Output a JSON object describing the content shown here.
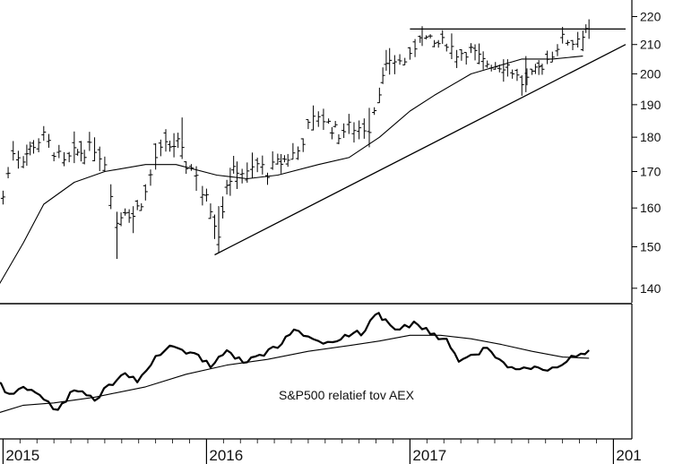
{
  "chart_data": [
    {
      "type": "line",
      "title": "",
      "ylim": [
        131,
        232
      ],
      "yticks": [
        140,
        150,
        160,
        170,
        180,
        190,
        200,
        210,
        220
      ],
      "x_tick_labels": [
        "2015",
        "2016",
        "2017",
        "201"
      ],
      "series": [
        {
          "style": "ohlc-bars",
          "points": [
            {
              "x": 2015.0,
              "y": 163
            },
            {
              "x": 2015.05,
              "y": 176
            },
            {
              "x": 2015.1,
              "y": 174
            },
            {
              "x": 2015.15,
              "y": 178
            },
            {
              "x": 2015.2,
              "y": 180
            },
            {
              "x": 2015.25,
              "y": 176
            },
            {
              "x": 2015.3,
              "y": 172
            },
            {
              "x": 2015.35,
              "y": 175
            },
            {
              "x": 2015.4,
              "y": 176
            },
            {
              "x": 2015.45,
              "y": 177
            },
            {
              "x": 2015.5,
              "y": 173
            },
            {
              "x": 2015.53,
              "y": 165
            },
            {
              "x": 2015.56,
              "y": 156
            },
            {
              "x": 2015.6,
              "y": 160
            },
            {
              "x": 2015.64,
              "y": 158
            },
            {
              "x": 2015.7,
              "y": 164
            },
            {
              "x": 2015.75,
              "y": 174
            },
            {
              "x": 2015.8,
              "y": 177
            },
            {
              "x": 2015.86,
              "y": 178
            },
            {
              "x": 2015.9,
              "y": 172
            },
            {
              "x": 2015.95,
              "y": 170
            },
            {
              "x": 2015.98,
              "y": 164
            },
            {
              "x": 2016.02,
              "y": 160
            },
            {
              "x": 2016.06,
              "y": 154
            },
            {
              "x": 2016.1,
              "y": 167
            },
            {
              "x": 2016.15,
              "y": 171
            },
            {
              "x": 2016.2,
              "y": 169
            },
            {
              "x": 2016.25,
              "y": 172
            },
            {
              "x": 2016.3,
              "y": 170
            },
            {
              "x": 2016.35,
              "y": 172
            },
            {
              "x": 2016.4,
              "y": 174
            },
            {
              "x": 2016.45,
              "y": 176
            },
            {
              "x": 2016.5,
              "y": 183
            },
            {
              "x": 2016.55,
              "y": 187
            },
            {
              "x": 2016.6,
              "y": 184
            },
            {
              "x": 2016.65,
              "y": 181
            },
            {
              "x": 2016.7,
              "y": 183
            },
            {
              "x": 2016.75,
              "y": 183
            },
            {
              "x": 2016.8,
              "y": 183
            },
            {
              "x": 2016.85,
              "y": 195
            },
            {
              "x": 2016.9,
              "y": 205
            },
            {
              "x": 2016.95,
              "y": 204
            },
            {
              "x": 2017.0,
              "y": 205
            },
            {
              "x": 2017.05,
              "y": 214
            },
            {
              "x": 2017.08,
              "y": 212
            },
            {
              "x": 2017.12,
              "y": 210
            },
            {
              "x": 2017.18,
              "y": 211
            },
            {
              "x": 2017.23,
              "y": 207
            },
            {
              "x": 2017.3,
              "y": 208
            },
            {
              "x": 2017.36,
              "y": 204
            },
            {
              "x": 2017.42,
              "y": 203
            },
            {
              "x": 2017.48,
              "y": 203
            },
            {
              "x": 2017.55,
              "y": 197
            },
            {
              "x": 2017.6,
              "y": 199
            },
            {
              "x": 2017.65,
              "y": 203
            },
            {
              "x": 2017.7,
              "y": 207
            },
            {
              "x": 2017.75,
              "y": 212
            },
            {
              "x": 2017.8,
              "y": 211
            },
            {
              "x": 2017.85,
              "y": 214
            },
            {
              "x": 2017.88,
              "y": 218
            }
          ]
        },
        {
          "style": "moving-average",
          "points": [
            {
              "x": 2014.97,
              "y": 140
            },
            {
              "x": 2015.1,
              "y": 151
            },
            {
              "x": 2015.2,
              "y": 161
            },
            {
              "x": 2015.35,
              "y": 167
            },
            {
              "x": 2015.5,
              "y": 170
            },
            {
              "x": 2015.7,
              "y": 172
            },
            {
              "x": 2015.85,
              "y": 172
            },
            {
              "x": 2016.05,
              "y": 169
            },
            {
              "x": 2016.2,
              "y": 168
            },
            {
              "x": 2016.35,
              "y": 169
            },
            {
              "x": 2016.55,
              "y": 172
            },
            {
              "x": 2016.7,
              "y": 174
            },
            {
              "x": 2016.85,
              "y": 180
            },
            {
              "x": 2017.0,
              "y": 188
            },
            {
              "x": 2017.12,
              "y": 193
            },
            {
              "x": 2017.3,
              "y": 200
            },
            {
              "x": 2017.45,
              "y": 203
            },
            {
              "x": 2017.55,
              "y": 205
            },
            {
              "x": 2017.7,
              "y": 205
            },
            {
              "x": 2017.85,
              "y": 206
            }
          ]
        },
        {
          "style": "trendline",
          "points": [
            {
              "x": 2016.04,
              "y": 148
            },
            {
              "x": 2018.06,
              "y": 210
            }
          ]
        },
        {
          "style": "resistance",
          "points": [
            {
              "x": 2017.0,
              "y": 215.5
            },
            {
              "x": 2018.06,
              "y": 215.5
            }
          ]
        }
      ]
    },
    {
      "type": "line",
      "annotation": "S&P500 relatief tov AEX",
      "series": [
        {
          "style": "ratio",
          "points": [
            {
              "x": 2014.97,
              "y": 0.4
            },
            {
              "x": 2015.03,
              "y": 0.3
            },
            {
              "x": 2015.1,
              "y": 0.36
            },
            {
              "x": 2015.2,
              "y": 0.25
            },
            {
              "x": 2015.27,
              "y": 0.16
            },
            {
              "x": 2015.35,
              "y": 0.33
            },
            {
              "x": 2015.45,
              "y": 0.24
            },
            {
              "x": 2015.52,
              "y": 0.38
            },
            {
              "x": 2015.6,
              "y": 0.48
            },
            {
              "x": 2015.66,
              "y": 0.4
            },
            {
              "x": 2015.75,
              "y": 0.63
            },
            {
              "x": 2015.82,
              "y": 0.72
            },
            {
              "x": 2015.9,
              "y": 0.65
            },
            {
              "x": 2015.96,
              "y": 0.64
            },
            {
              "x": 2016.02,
              "y": 0.53
            },
            {
              "x": 2016.1,
              "y": 0.68
            },
            {
              "x": 2016.18,
              "y": 0.57
            },
            {
              "x": 2016.26,
              "y": 0.64
            },
            {
              "x": 2016.35,
              "y": 0.7
            },
            {
              "x": 2016.43,
              "y": 0.86
            },
            {
              "x": 2016.5,
              "y": 0.8
            },
            {
              "x": 2016.55,
              "y": 0.76
            },
            {
              "x": 2016.62,
              "y": 0.75
            },
            {
              "x": 2016.7,
              "y": 0.8
            },
            {
              "x": 2016.78,
              "y": 0.85
            },
            {
              "x": 2016.83,
              "y": 0.99
            },
            {
              "x": 2016.88,
              "y": 0.95
            },
            {
              "x": 2016.95,
              "y": 0.86
            },
            {
              "x": 2017.02,
              "y": 0.93
            },
            {
              "x": 2017.1,
              "y": 0.82
            },
            {
              "x": 2017.18,
              "y": 0.78
            },
            {
              "x": 2017.24,
              "y": 0.58
            },
            {
              "x": 2017.3,
              "y": 0.64
            },
            {
              "x": 2017.38,
              "y": 0.7
            },
            {
              "x": 2017.48,
              "y": 0.53
            },
            {
              "x": 2017.56,
              "y": 0.53
            },
            {
              "x": 2017.63,
              "y": 0.53
            },
            {
              "x": 2017.7,
              "y": 0.53
            },
            {
              "x": 2017.77,
              "y": 0.58
            },
            {
              "x": 2017.84,
              "y": 0.65
            },
            {
              "x": 2017.88,
              "y": 0.68
            }
          ]
        },
        {
          "style": "ratio-average",
          "points": [
            {
              "x": 2014.97,
              "y": 0.13
            },
            {
              "x": 2015.1,
              "y": 0.2
            },
            {
              "x": 2015.25,
              "y": 0.22
            },
            {
              "x": 2015.45,
              "y": 0.27
            },
            {
              "x": 2015.7,
              "y": 0.36
            },
            {
              "x": 2015.9,
              "y": 0.47
            },
            {
              "x": 2016.1,
              "y": 0.55
            },
            {
              "x": 2016.3,
              "y": 0.6
            },
            {
              "x": 2016.5,
              "y": 0.67
            },
            {
              "x": 2016.7,
              "y": 0.72
            },
            {
              "x": 2016.85,
              "y": 0.76
            },
            {
              "x": 2017.0,
              "y": 0.81
            },
            {
              "x": 2017.15,
              "y": 0.81
            },
            {
              "x": 2017.3,
              "y": 0.78
            },
            {
              "x": 2017.45,
              "y": 0.73
            },
            {
              "x": 2017.6,
              "y": 0.67
            },
            {
              "x": 2017.75,
              "y": 0.62
            },
            {
              "x": 2017.88,
              "y": 0.61
            }
          ]
        }
      ]
    }
  ]
}
